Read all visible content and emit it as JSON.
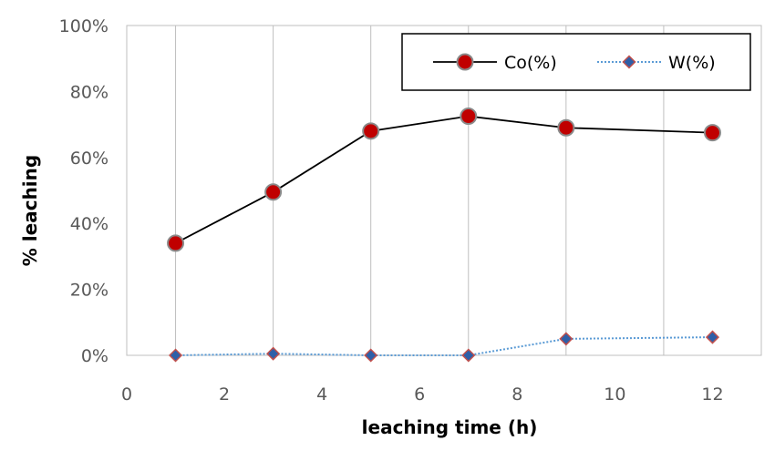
{
  "chart_data": {
    "type": "line",
    "title": "",
    "xlabel": "leaching time (h)",
    "ylabel": "% leaching",
    "xlim": [
      0,
      13
    ],
    "ylim": [
      0,
      100
    ],
    "x_ticks": [
      0,
      2,
      4,
      6,
      8,
      10,
      12
    ],
    "y_ticks": [
      "0%",
      "20%",
      "40%",
      "60%",
      "80%",
      "100%"
    ],
    "grid": "vertical",
    "legend_position": "top-right",
    "series": [
      {
        "name": "Co(%)",
        "marker": "circle",
        "line_style": "solid",
        "line_color": "#000000",
        "marker_color": "#c00000",
        "x": [
          1,
          3,
          5,
          7,
          9,
          12
        ],
        "y": [
          34,
          49.5,
          68,
          72.5,
          69,
          67.5
        ]
      },
      {
        "name": "W(%)",
        "marker": "diamond",
        "line_style": "dotted",
        "line_color": "#5b9bd5",
        "marker_color": "#2e5fa8",
        "x": [
          1,
          3,
          5,
          7,
          9,
          12
        ],
        "y": [
          0,
          0.5,
          0,
          0,
          5,
          5.5
        ]
      }
    ]
  }
}
